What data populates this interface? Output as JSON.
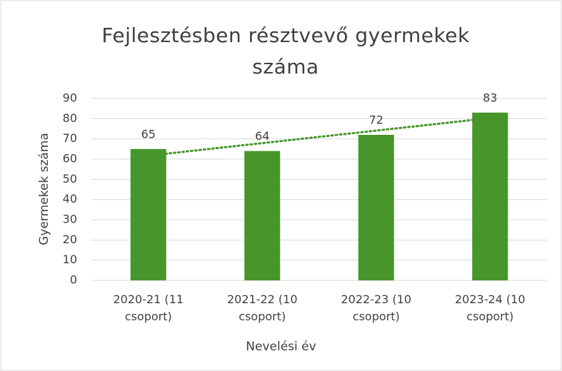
{
  "chart_data": {
    "type": "bar",
    "title": "Fejlesztésben résztvevő gyermekek száma",
    "x_label": "Nevelési év",
    "y_label": "Gyermekek száma",
    "categories": [
      "2020-21 (11 csoport)",
      "2021-22 (10 csoport)",
      "2022-23 (10 csoport)",
      "2023-24 (10 csoport)"
    ],
    "values": [
      65,
      64,
      72,
      83
    ],
    "color": "#46962b",
    "trendline": true,
    "ylim": [
      0,
      90
    ],
    "yticks": [
      0,
      10,
      20,
      30,
      40,
      50,
      60,
      70,
      80,
      90
    ],
    "grid": true
  }
}
